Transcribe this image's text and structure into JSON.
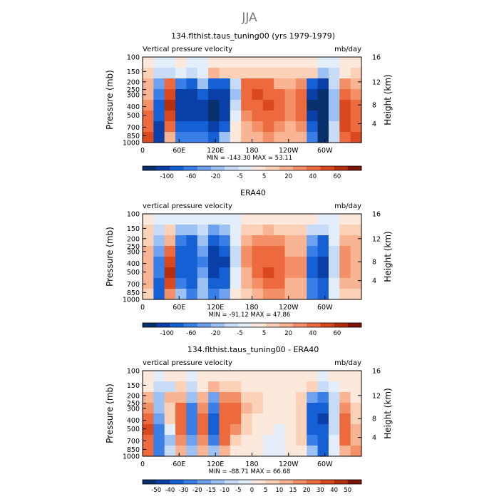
{
  "figure": {
    "season": "JJA"
  },
  "colors": {
    "blue_scale": [
      "#08306b",
      "#0a3fa8",
      "#1660d6",
      "#3a7ee8",
      "#6ea2f0",
      "#9cc2f5",
      "#c8dcf8",
      "#e4eefb"
    ],
    "red_scale": [
      "#fde9dc",
      "#fbd2b8",
      "#f9b493",
      "#f49068",
      "#ec6a3e",
      "#d9481f",
      "#b52e10",
      "#7a1405"
    ]
  },
  "chart_data": [
    {
      "type": "heatmap",
      "title": "134.flthist.taus_tuning00 (yrs 1979-1979)",
      "left_label": "Vertical pressure velocity",
      "right_label": "mb/day",
      "ylabel": "Pressure (mb)",
      "ylabel_right": "Height (km)",
      "x_ticks": [
        "0",
        "60E",
        "120E",
        "180",
        "120W",
        "60W"
      ],
      "y_ticks": [
        "100",
        "150",
        "200",
        "250",
        "300",
        "400",
        "500",
        "700",
        "850",
        "1000"
      ],
      "y_ticks_right": [
        "16",
        "12",
        "8",
        "4"
      ],
      "stats": "MIN = -143.30   MAX =  53.11",
      "colorbar_labels": [
        "-100",
        "-60",
        "-20",
        "-5",
        "5",
        "20",
        "40",
        "60"
      ],
      "field": {
        "rows_from_top": [
          [
            4,
            -2,
            -2,
            0,
            -1,
            -1,
            0,
            3,
            4,
            2,
            3,
            3,
            2,
            3,
            3,
            3,
            -2,
            -1,
            2,
            3
          ],
          [
            8,
            -8,
            -5,
            -4,
            -6,
            -3,
            10,
            9,
            9,
            8,
            8,
            5,
            5,
            6,
            7,
            7,
            -12,
            -6,
            4,
            8
          ],
          [
            12,
            -15,
            25,
            -28,
            -30,
            -14,
            -36,
            -30,
            -6,
            20,
            26,
            22,
            14,
            10,
            18,
            -40,
            -50,
            -8,
            18,
            12
          ],
          [
            14,
            -25,
            35,
            -50,
            -55,
            -40,
            -60,
            -45,
            -10,
            24,
            30,
            28,
            22,
            16,
            22,
            -60,
            -80,
            -10,
            26,
            16
          ],
          [
            18,
            -35,
            40,
            -58,
            -62,
            -50,
            -110,
            -56,
            -8,
            22,
            28,
            30,
            24,
            18,
            24,
            -70,
            -100,
            -12,
            30,
            20
          ],
          [
            22,
            -40,
            34,
            -52,
            -60,
            -50,
            -90,
            -48,
            -4,
            18,
            24,
            26,
            22,
            18,
            22,
            -60,
            -90,
            -10,
            32,
            24
          ],
          [
            24,
            -50,
            22,
            -30,
            -40,
            -30,
            -50,
            -30,
            2,
            12,
            18,
            20,
            18,
            14,
            18,
            -40,
            -80,
            -8,
            30,
            28
          ],
          [
            30,
            -60,
            10,
            -20,
            -22,
            -20,
            -32,
            -14,
            4,
            10,
            14,
            16,
            14,
            12,
            14,
            -28,
            -90,
            -6,
            26,
            30
          ]
        ]
      }
    },
    {
      "type": "heatmap",
      "title": "ERA40",
      "left_label": "vertical pressure velocity",
      "right_label": "mb/day",
      "ylabel": "Pressure (mb)",
      "ylabel_right": "Height (km)",
      "x_ticks": [
        "0",
        "60E",
        "120E",
        "180",
        "120W",
        "60W"
      ],
      "y_ticks": [
        "100",
        "150",
        "200",
        "250",
        "300",
        "400",
        "500",
        "700",
        "850",
        "1000"
      ],
      "y_ticks_right": [
        "16",
        "12",
        "8",
        "4"
      ],
      "stats": "MIN = -91.12   MAX =  47.86",
      "colorbar_labels": [
        "-100",
        "-60",
        "-20",
        "-5",
        "5",
        "20",
        "40",
        "60"
      ],
      "field": {
        "rows_from_top": [
          [
            3,
            -1,
            -1,
            -2,
            -2,
            -1,
            -1,
            -1,
            -2,
            2,
            3,
            3,
            2,
            2,
            2,
            2,
            -1,
            -1,
            2,
            3
          ],
          [
            5,
            -6,
            6,
            -12,
            -14,
            -5,
            -16,
            -10,
            -2,
            6,
            9,
            10,
            8,
            6,
            6,
            -6,
            -8,
            -2,
            6,
            6
          ],
          [
            8,
            -12,
            14,
            -26,
            -30,
            -10,
            -32,
            -28,
            -4,
            14,
            18,
            18,
            16,
            10,
            12,
            -18,
            -30,
            -4,
            12,
            10
          ],
          [
            10,
            -18,
            26,
            -34,
            -38,
            -16,
            -48,
            -40,
            -6,
            16,
            22,
            24,
            20,
            14,
            14,
            -26,
            -44,
            -6,
            16,
            12
          ],
          [
            12,
            -22,
            36,
            -38,
            -42,
            -20,
            -56,
            -46,
            -6,
            16,
            24,
            28,
            24,
            16,
            16,
            -32,
            -50,
            -6,
            18,
            14
          ],
          [
            12,
            -26,
            40,
            -34,
            -38,
            -18,
            -52,
            -42,
            -4,
            14,
            22,
            30,
            24,
            16,
            16,
            -30,
            -46,
            -6,
            16,
            12
          ],
          [
            10,
            -34,
            32,
            -24,
            -30,
            -14,
            -38,
            -30,
            -2,
            10,
            18,
            26,
            22,
            14,
            14,
            -26,
            -40,
            -4,
            12,
            10
          ],
          [
            8,
            -42,
            18,
            -14,
            -20,
            -10,
            -24,
            -18,
            0,
            6,
            12,
            18,
            16,
            10,
            10,
            -20,
            -34,
            -2,
            8,
            8
          ]
        ]
      }
    },
    {
      "type": "heatmap",
      "title": "134.flthist.taus_tuning00 - ERA40",
      "left_label": "vertical pressure velocity",
      "right_label": "mb/day",
      "ylabel": "Pressure (mb)",
      "ylabel_right": "Height (km)",
      "x_ticks": [
        "0",
        "60E",
        "120E",
        "180",
        "120W",
        "60W"
      ],
      "y_ticks": [
        "100",
        "150",
        "200",
        "250",
        "300",
        "400",
        "500",
        "700",
        "850",
        "1000"
      ],
      "y_ticks_right": [
        "16",
        "12",
        "8",
        "4"
      ],
      "stats": "MIN = -88.71   MAX =  66.68",
      "colorbar_labels": [
        "-50",
        "-40",
        "-30",
        "-20",
        "-15",
        "-10",
        "-5",
        "0",
        "5",
        "10",
        "15",
        "20",
        "30",
        "40",
        "50"
      ],
      "field": {
        "rows_from_top": [
          [
            2,
            -1,
            1,
            1,
            -1,
            0,
            1,
            2,
            2,
            1,
            2,
            2,
            1,
            2,
            2,
            1,
            -1,
            0,
            1,
            2
          ],
          [
            4,
            -6,
            -8,
            6,
            -6,
            4,
            10,
            8,
            6,
            4,
            3,
            2,
            2,
            3,
            4,
            6,
            -8,
            -4,
            4,
            3
          ],
          [
            10,
            -10,
            12,
            14,
            -14,
            12,
            -18,
            16,
            18,
            8,
            6,
            4,
            3,
            4,
            6,
            -16,
            -26,
            -6,
            12,
            4
          ],
          [
            18,
            -14,
            8,
            22,
            -22,
            18,
            -24,
            22,
            24,
            10,
            6,
            4,
            2,
            4,
            8,
            -30,
            -40,
            -6,
            18,
            6
          ],
          [
            24,
            -18,
            6,
            26,
            -26,
            24,
            -32,
            26,
            22,
            8,
            4,
            2,
            0,
            2,
            8,
            -38,
            -46,
            -6,
            22,
            8
          ],
          [
            30,
            -20,
            -4,
            24,
            -24,
            22,
            -30,
            24,
            18,
            6,
            2,
            0,
            -2,
            2,
            8,
            -32,
            -42,
            -6,
            24,
            10
          ],
          [
            28,
            -22,
            -10,
            18,
            -16,
            18,
            -22,
            20,
            8,
            4,
            0,
            -2,
            -2,
            2,
            6,
            -20,
            -38,
            -4,
            20,
            14
          ],
          [
            22,
            -24,
            -8,
            10,
            -10,
            14,
            -14,
            10,
            2,
            2,
            0,
            -2,
            -2,
            0,
            4,
            -12,
            -34,
            -2,
            14,
            16
          ]
        ]
      }
    }
  ]
}
